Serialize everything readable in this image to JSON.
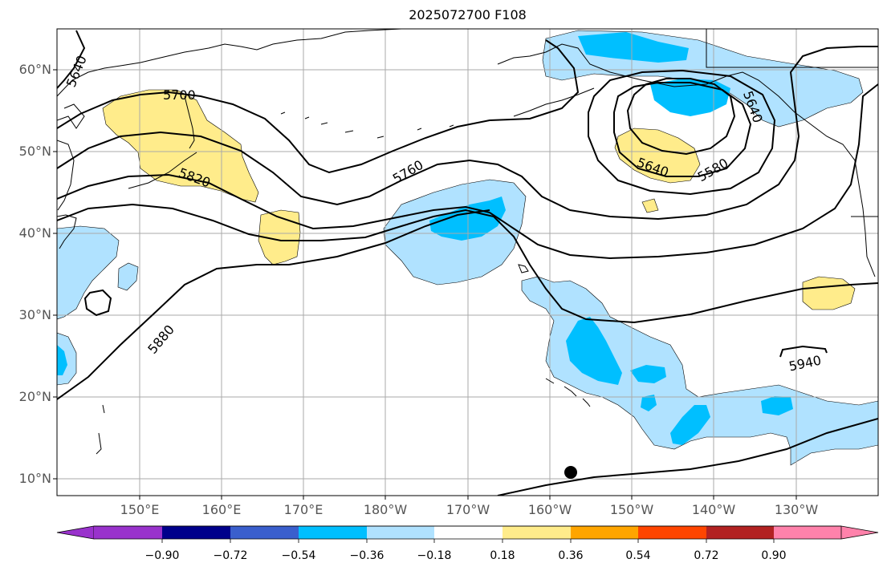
{
  "title": "2025072700 F108",
  "lat_labels": [
    "60°N",
    "50°N",
    "40°N",
    "30°N",
    "20°N",
    "10°N"
  ],
  "lon_labels": [
    "150°E",
    "160°E",
    "170°E",
    "180°W",
    "170°W",
    "160°W",
    "150°W",
    "140°W",
    "130°W"
  ],
  "contour_labels": [
    "5640",
    "5700",
    "5820",
    "5760",
    "5640",
    "5580",
    "5880",
    "5940",
    "5640"
  ],
  "colorbar": {
    "ticks": [
      "−0.90",
      "−0.72",
      "−0.54",
      "−0.36",
      "−0.18",
      "0.18",
      "0.36",
      "0.54",
      "0.72",
      "0.90"
    ],
    "colors": [
      "#9932cc",
      "#00008b",
      "#3a5fcd",
      "#00bfff",
      "#b0e2ff",
      "#ffffff",
      "#ffec8b",
      "#ffa500",
      "#ff4500",
      "#b22222",
      "#ff82ab"
    ]
  }
}
